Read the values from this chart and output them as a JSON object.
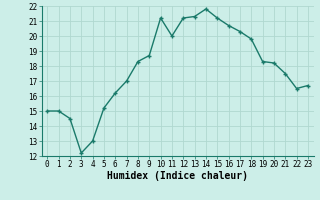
{
  "x": [
    0,
    1,
    2,
    3,
    4,
    5,
    6,
    7,
    8,
    9,
    10,
    11,
    12,
    13,
    14,
    15,
    16,
    17,
    18,
    19,
    20,
    21,
    22,
    23
  ],
  "y": [
    15.0,
    15.0,
    14.5,
    12.2,
    13.0,
    15.2,
    16.2,
    17.0,
    18.3,
    18.7,
    21.2,
    20.0,
    21.2,
    21.3,
    21.8,
    21.2,
    20.7,
    20.3,
    19.8,
    18.3,
    18.2,
    17.5,
    16.5,
    16.7
  ],
  "line_color": "#1a7a6a",
  "marker": "+",
  "marker_color": "#1a7a6a",
  "bg_color": "#cceee8",
  "grid_color": "#b0d8d0",
  "xlabel": "Humidex (Indice chaleur)",
  "ylim": [
    12,
    22
  ],
  "xlim": [
    -0.5,
    23.5
  ],
  "yticks": [
    12,
    13,
    14,
    15,
    16,
    17,
    18,
    19,
    20,
    21,
    22
  ],
  "xticks": [
    0,
    1,
    2,
    3,
    4,
    5,
    6,
    7,
    8,
    9,
    10,
    11,
    12,
    13,
    14,
    15,
    16,
    17,
    18,
    19,
    20,
    21,
    22,
    23
  ],
  "tick_fontsize": 5.5,
  "xlabel_fontsize": 7,
  "line_width": 1.0,
  "marker_size": 3.5
}
